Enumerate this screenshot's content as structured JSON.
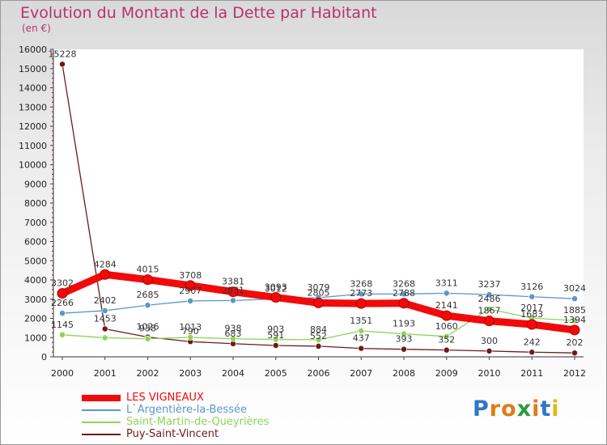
{
  "chart_data": {
    "type": "line",
    "title": "Evolution du Montant de la Dette par Habitant",
    "subtitle": "(en €)",
    "xlabel": "",
    "ylabel": "",
    "categories": [
      "2000",
      "2001",
      "2002",
      "2003",
      "2004",
      "2005",
      "2006",
      "2007",
      "2008",
      "2009",
      "2010",
      "2011",
      "2012"
    ],
    "ylim": [
      0,
      16000
    ],
    "yticks": [
      0,
      1000,
      2000,
      3000,
      4000,
      5000,
      6000,
      7000,
      8000,
      9000,
      10000,
      11000,
      12000,
      13000,
      14000,
      15000,
      16000
    ],
    "series": [
      {
        "name": "Puy-Saint-Vincent",
        "color": "#6e1a1a",
        "values": [
          15228,
          1453,
          1026,
          790,
          683,
          591,
          552,
          437,
          393,
          352,
          300,
          242,
          202
        ],
        "labels": [
          "15228",
          "1453",
          "1026",
          "790",
          "683",
          "591",
          "552",
          "437",
          "393",
          "352",
          "300",
          "242",
          "202"
        ]
      },
      {
        "name": "Saint-Martin-de-Queyrières",
        "color": "#8ed45a",
        "values": [
          1145,
          993,
          938,
          1013,
          938,
          903,
          884,
          1351,
          1193,
          1060,
          2486,
          2017,
          1885
        ],
        "labels": [
          "1145",
          "",
          "938",
          "1013",
          "938",
          "903",
          "884",
          "1351",
          "1193",
          "1060",
          "2486",
          "2017",
          "1885"
        ]
      },
      {
        "name": "L`Argentière-la-Bessée",
        "color": "#5a97c9",
        "values": [
          2266,
          2402,
          2685,
          2907,
          2931,
          3012,
          3079,
          3268,
          3268,
          3311,
          3237,
          3126,
          3024
        ],
        "labels": [
          "2266",
          "2402",
          "2685",
          "2907",
          "2931",
          "3012",
          "3079",
          "3268",
          "3268",
          "3311",
          "3237",
          "3126",
          "3024"
        ]
      },
      {
        "name": "LES VIGNEAUX",
        "color": "#f20a0a",
        "values": [
          3302,
          4284,
          4015,
          3708,
          3381,
          3093,
          2805,
          2773,
          2788,
          2141,
          1867,
          1683,
          1394
        ],
        "labels": [
          "3302",
          "4284",
          "4015",
          "3708",
          "3381",
          "3093",
          "2805",
          "2773",
          "2788",
          "2141",
          "1867",
          "1683",
          "1394"
        ]
      }
    ]
  },
  "legend": {
    "items": [
      {
        "label": "LES VIGNEAUX",
        "color": "#f20a0a"
      },
      {
        "label": "L`Argentière-la-Bessée",
        "color": "#5a97c9"
      },
      {
        "label": "Saint-Martin-de-Queyrières",
        "color": "#8ed45a"
      },
      {
        "label": "Puy-Saint-Vincent",
        "color": "#6e1a1a"
      }
    ]
  },
  "brand": {
    "letters": [
      "P",
      "r",
      "o",
      "x",
      "i",
      "t",
      "i"
    ],
    "colors": [
      "#2c77c8",
      "#e07b18",
      "#e07b18",
      "#2c9a3c",
      "#e07b18",
      "#2c77c8",
      "#e0b818"
    ]
  }
}
